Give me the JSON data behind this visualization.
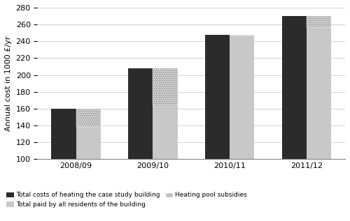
{
  "categories": [
    "2008/09",
    "2009/10",
    "2010/11",
    "2011/12"
  ],
  "total_heating_costs": [
    160,
    208,
    248,
    270
  ],
  "total_paid_residents": [
    138,
    163,
    247,
    257
  ],
  "heating_pool_subsidies": [
    22,
    45,
    1,
    13
  ],
  "bar_width": 0.32,
  "ylim": [
    100,
    280
  ],
  "yticks": [
    100,
    120,
    140,
    160,
    180,
    200,
    220,
    240,
    260,
    280
  ],
  "ylabel": "Annual cost in 1000 £/yr",
  "color_dark": "#2b2b2b",
  "color_light": "#c8c8c8",
  "color_dotted_fill": "#a0a0a0",
  "legend_labels": [
    "Total costs of heating the case study building",
    "Total paid by all residents of the building",
    "Heating pool subsidies"
  ],
  "title": ""
}
